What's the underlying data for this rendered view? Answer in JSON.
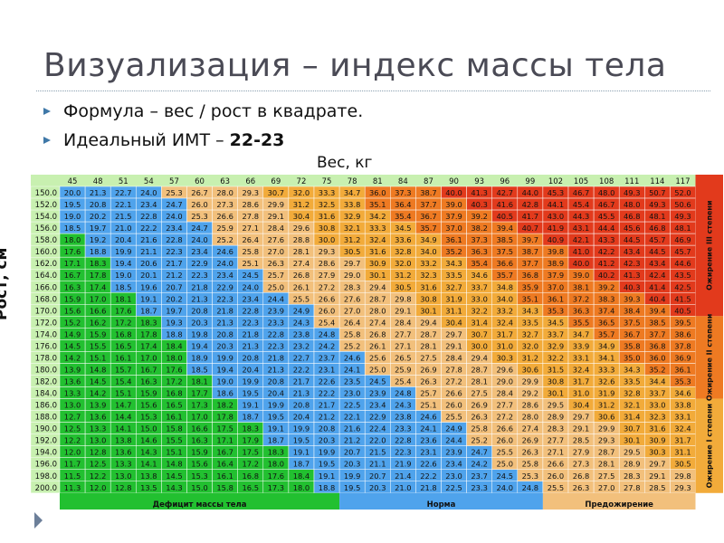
{
  "slide": {
    "title": "Визуализация – индекс массы тела",
    "bullets": [
      {
        "text": "Формула – вес / рост в квадрате.",
        "emph": ""
      },
      {
        "text": "Идеальный ИМТ – ",
        "emph": "22-23"
      }
    ],
    "weight_label": "Вес, кг",
    "height_label": "Рост, см"
  },
  "chart_data": {
    "type": "heatmap",
    "xlabel": "Вес, кг",
    "ylabel": "Рост, см",
    "weights": [
      45,
      48,
      51,
      54,
      57,
      60,
      63,
      66,
      69,
      72,
      75,
      78,
      81,
      84,
      87,
      90,
      93,
      96,
      99,
      102,
      105,
      108,
      111,
      114,
      117
    ],
    "heights": [
      150,
      152,
      154,
      156,
      158,
      160,
      162,
      164,
      166,
      168,
      170,
      172,
      174,
      176,
      178,
      180,
      182,
      184,
      186,
      188,
      190,
      192,
      194,
      196,
      198,
      200
    ],
    "cells": [
      [
        20.0,
        21.3,
        22.7,
        24.0,
        25.3,
        26.7,
        28.0,
        29.3,
        30.7,
        32.0,
        33.3,
        34.7,
        36.0,
        37.3,
        38.7,
        40.0,
        41.3,
        42.7,
        44.0,
        45.3,
        46.7,
        48.0,
        49.3,
        50.7,
        52.0
      ],
      [
        19.5,
        20.8,
        22.1,
        23.4,
        24.7,
        26.0,
        27.3,
        28.6,
        29.9,
        31.2,
        32.5,
        33.8,
        35.1,
        36.4,
        37.7,
        39.0,
        40.3,
        41.6,
        42.8,
        44.1,
        45.4,
        46.7,
        48.0,
        49.3,
        50.6
      ],
      [
        19.0,
        20.2,
        21.5,
        22.8,
        24.0,
        25.3,
        26.6,
        27.8,
        29.1,
        30.4,
        31.6,
        32.9,
        34.2,
        35.4,
        36.7,
        37.9,
        39.2,
        40.5,
        41.7,
        43.0,
        44.3,
        45.5,
        46.8,
        48.1,
        49.3
      ],
      [
        18.5,
        19.7,
        21.0,
        22.2,
        23.4,
        24.7,
        25.9,
        27.1,
        28.4,
        29.6,
        30.8,
        32.1,
        33.3,
        34.5,
        35.7,
        37.0,
        38.2,
        39.4,
        40.7,
        41.9,
        43.1,
        44.4,
        45.6,
        46.8,
        48.1
      ],
      [
        18.0,
        19.2,
        20.4,
        21.6,
        22.8,
        24.0,
        25.2,
        26.4,
        27.6,
        28.8,
        30.0,
        31.2,
        32.4,
        33.6,
        34.9,
        36.1,
        37.3,
        38.5,
        39.7,
        40.9,
        42.1,
        43.3,
        44.5,
        45.7,
        46.9
      ],
      [
        17.6,
        18.8,
        19.9,
        21.1,
        22.3,
        23.4,
        24.6,
        25.8,
        27.0,
        28.1,
        29.3,
        30.5,
        31.6,
        32.8,
        34.0,
        35.2,
        36.3,
        37.5,
        38.7,
        39.8,
        41.0,
        42.2,
        43.4,
        44.5,
        45.7
      ],
      [
        17.1,
        18.3,
        19.4,
        20.6,
        21.7,
        22.9,
        24.0,
        25.1,
        26.3,
        27.4,
        28.6,
        29.7,
        30.9,
        32.0,
        33.2,
        34.3,
        35.4,
        36.6,
        37.7,
        38.9,
        40.0,
        41.2,
        42.3,
        43.4,
        44.6
      ],
      [
        16.7,
        17.8,
        19.0,
        20.1,
        21.2,
        22.3,
        23.4,
        24.5,
        25.7,
        26.8,
        27.9,
        29.0,
        30.1,
        31.2,
        32.3,
        33.5,
        34.6,
        35.7,
        36.8,
        37.9,
        39.0,
        40.2,
        41.3,
        42.4,
        43.5
      ],
      [
        16.3,
        17.4,
        18.5,
        19.6,
        20.7,
        21.8,
        22.9,
        24.0,
        25.0,
        26.1,
        27.2,
        28.3,
        29.4,
        30.5,
        31.6,
        32.7,
        33.7,
        34.8,
        35.9,
        37.0,
        38.1,
        39.2,
        40.3,
        41.4,
        42.5
      ],
      [
        15.9,
        17.0,
        18.1,
        19.1,
        20.2,
        21.3,
        22.3,
        23.4,
        24.4,
        25.5,
        26.6,
        27.6,
        28.7,
        29.8,
        30.8,
        31.9,
        33.0,
        34.0,
        35.1,
        36.1,
        37.2,
        38.3,
        39.3,
        40.4,
        41.5
      ],
      [
        15.6,
        16.6,
        17.6,
        18.7,
        19.7,
        20.8,
        21.8,
        22.8,
        23.9,
        24.9,
        26.0,
        27.0,
        28.0,
        29.1,
        30.1,
        31.1,
        32.2,
        33.2,
        34.3,
        35.3,
        36.3,
        37.4,
        38.4,
        39.4,
        40.5
      ],
      [
        15.2,
        16.2,
        17.2,
        18.3,
        19.3,
        20.3,
        21.3,
        22.3,
        23.3,
        24.3,
        25.4,
        26.4,
        27.4,
        28.4,
        29.4,
        30.4,
        31.4,
        32.4,
        33.5,
        34.5,
        35.5,
        36.5,
        37.5,
        38.5,
        39.5
      ],
      [
        14.9,
        15.9,
        16.8,
        17.8,
        18.8,
        19.8,
        20.8,
        21.8,
        22.8,
        23.8,
        24.8,
        25.8,
        26.8,
        27.7,
        28.7,
        29.7,
        30.7,
        31.7,
        32.7,
        33.7,
        34.7,
        35.7,
        36.7,
        37.7,
        38.6
      ],
      [
        14.5,
        15.5,
        16.5,
        17.4,
        18.4,
        19.4,
        20.3,
        21.3,
        22.3,
        23.2,
        24.2,
        25.2,
        26.1,
        27.1,
        28.1,
        29.1,
        30.0,
        31.0,
        32.0,
        32.9,
        33.9,
        34.9,
        35.8,
        36.8,
        37.8
      ],
      [
        14.2,
        15.1,
        16.1,
        17.0,
        18.0,
        18.9,
        19.9,
        20.8,
        21.8,
        22.7,
        23.7,
        24.6,
        25.6,
        26.5,
        27.5,
        28.4,
        29.4,
        30.3,
        31.2,
        32.2,
        33.1,
        34.1,
        35.0,
        36.0,
        36.9
      ],
      [
        13.9,
        14.8,
        15.7,
        16.7,
        17.6,
        18.5,
        19.4,
        20.4,
        21.3,
        22.2,
        23.1,
        24.1,
        25.0,
        25.9,
        26.9,
        27.8,
        28.7,
        29.6,
        30.6,
        31.5,
        32.4,
        33.3,
        34.3,
        35.2,
        36.1
      ],
      [
        13.6,
        14.5,
        15.4,
        16.3,
        17.2,
        18.1,
        19.0,
        19.9,
        20.8,
        21.7,
        22.6,
        23.5,
        24.5,
        25.4,
        26.3,
        27.2,
        28.1,
        29.0,
        29.9,
        30.8,
        31.7,
        32.6,
        33.5,
        34.4,
        35.3
      ],
      [
        13.3,
        14.2,
        15.1,
        15.9,
        16.8,
        17.7,
        18.6,
        19.5,
        20.4,
        21.3,
        22.2,
        23.0,
        23.9,
        24.8,
        25.7,
        26.6,
        27.5,
        28.4,
        29.2,
        30.1,
        31.0,
        31.9,
        32.8,
        33.7,
        34.6
      ],
      [
        13.0,
        13.9,
        14.7,
        15.6,
        16.5,
        17.3,
        18.2,
        19.1,
        19.9,
        20.8,
        21.7,
        22.5,
        23.4,
        24.3,
        25.1,
        26.0,
        26.9,
        27.7,
        28.6,
        29.5,
        30.4,
        31.2,
        32.1,
        33.0,
        33.8
      ],
      [
        12.7,
        13.6,
        14.4,
        15.3,
        16.1,
        17.0,
        17.8,
        18.7,
        19.5,
        20.4,
        21.2,
        22.1,
        22.9,
        23.8,
        24.6,
        25.5,
        26.3,
        27.2,
        28.0,
        28.9,
        29.7,
        30.6,
        31.4,
        32.3,
        33.1
      ],
      [
        12.5,
        13.3,
        14.1,
        15.0,
        15.8,
        16.6,
        17.5,
        18.3,
        19.1,
        19.9,
        20.8,
        21.6,
        22.4,
        23.3,
        24.1,
        24.9,
        25.8,
        26.6,
        27.4,
        28.3,
        29.1,
        29.9,
        30.7,
        31.6,
        32.4
      ],
      [
        12.2,
        13.0,
        13.8,
        14.6,
        15.5,
        16.3,
        17.1,
        17.9,
        18.7,
        19.5,
        20.3,
        21.2,
        22.0,
        22.8,
        23.6,
        24.4,
        25.2,
        26.0,
        26.9,
        27.7,
        28.5,
        29.3,
        30.1,
        30.9,
        31.7
      ],
      [
        12.0,
        12.8,
        13.6,
        14.3,
        15.1,
        15.9,
        16.7,
        17.5,
        18.3,
        19.1,
        19.9,
        20.7,
        21.5,
        22.3,
        23.1,
        23.9,
        24.7,
        25.5,
        26.3,
        27.1,
        27.9,
        28.7,
        29.5,
        30.3,
        31.1
      ],
      [
        11.7,
        12.5,
        13.3,
        14.1,
        14.8,
        15.6,
        16.4,
        17.2,
        18.0,
        18.7,
        19.5,
        20.3,
        21.1,
        21.9,
        22.6,
        23.4,
        24.2,
        25.0,
        25.8,
        26.6,
        27.3,
        28.1,
        28.9,
        29.7,
        30.5
      ],
      [
        11.5,
        12.2,
        13.0,
        13.8,
        14.5,
        15.3,
        16.1,
        16.8,
        17.6,
        18.4,
        19.1,
        19.9,
        20.7,
        21.4,
        22.2,
        23.0,
        23.7,
        24.5,
        25.3,
        26.0,
        26.8,
        27.5,
        28.3,
        29.1,
        29.8
      ],
      [
        11.3,
        12.0,
        12.8,
        13.5,
        14.3,
        15.0,
        15.8,
        16.5,
        17.3,
        18.0,
        18.8,
        19.5,
        20.3,
        21.0,
        21.8,
        22.5,
        23.3,
        24.0,
        24.8,
        25.5,
        26.3,
        27.0,
        27.8,
        28.5,
        29.3
      ]
    ],
    "categories_bottom": [
      "Дефицит массы тела",
      "Норма",
      "Предожирение"
    ],
    "categories_right": [
      "Ожирение III степени",
      "Ожирение II степени",
      "Ожирение I степени"
    ],
    "colors": {
      "deficit": "#22c030",
      "norm": "#4fa3ec",
      "pre": "#f2c07c",
      "ob1": "#f2ab3a",
      "ob2": "#ee7a22",
      "ob3": "#e23a1c",
      "header": "#c8f0b0",
      "left_col": "#c8f0b0"
    }
  }
}
